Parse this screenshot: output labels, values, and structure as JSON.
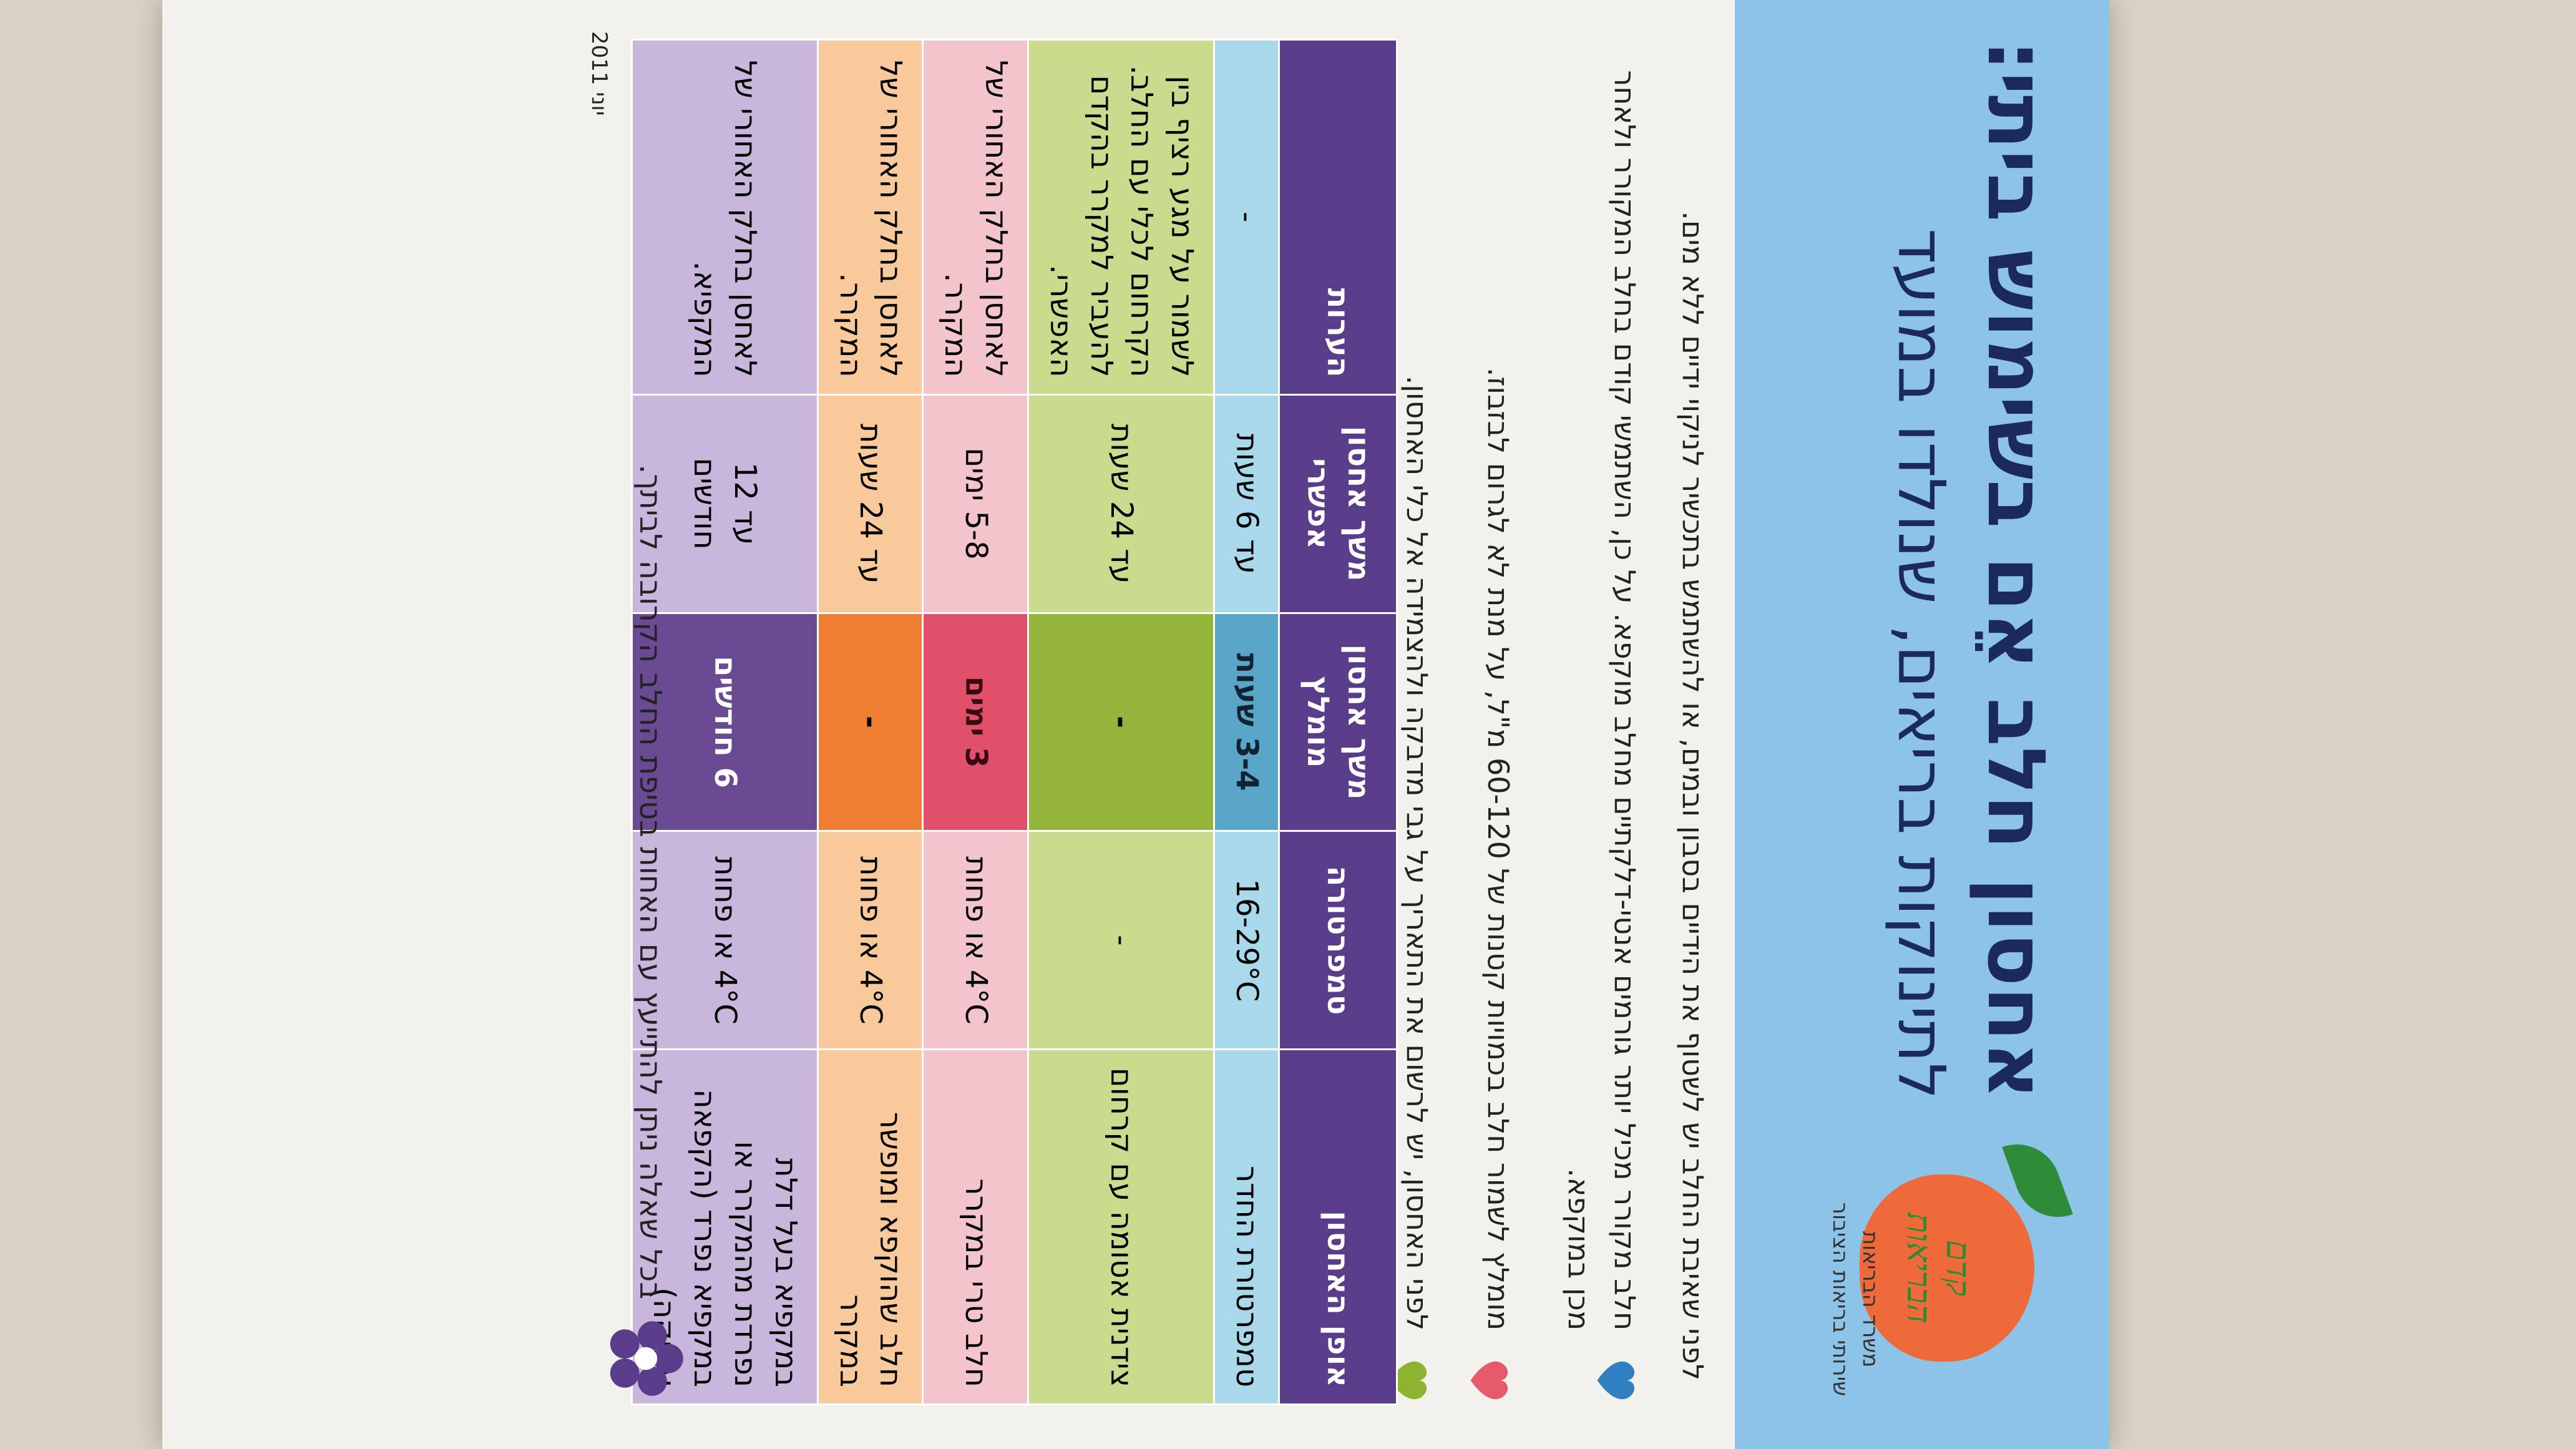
{
  "title": "אחסון חלב אֵם בשימוש ביתי:",
  "subtitle": "לתינוקות בריאים, שנולדו במועד",
  "logo": {
    "text": "קדם הבריאות",
    "ministry_line1": "משרד הבריאות",
    "ministry_line2": "שירותי בריאות הציבור"
  },
  "intro": "לפני שאיבת החלב יש לשטוף את הידיים בסבון ובמים, או להשתמש בתכשיר לניקוי ידיים ללא מים.",
  "tips": [
    {
      "text": "חלב מקורר מכיל יותר גורמים אנטי-דלקתיים מחלב מוקפא. על כן, השתמשי קודם בחלב המקורר ולאחר מכן במוקפא.",
      "color": "#2f7fc1"
    },
    {
      "text": "מומלץ לשמור חלב בכמויות קטנות של 60-120 מ\"ל, על מנת לא לגרום לבזבוז.",
      "color": "#e65a6a"
    },
    {
      "text": "לפני האחסון, יש לרשום את התאריך על גבי מדבקה ולהצמידה אל כלי האחסון.",
      "color": "#8cb431"
    }
  ],
  "table": {
    "headers": [
      "אופן האחסון",
      "טמפרטורה",
      "משך אחסון מומלץ",
      "משך אחסון אפשרי",
      "הערות"
    ],
    "rows": [
      [
        "טמפרטורת החדר",
        "16-29°C",
        "3-4 שעות",
        "עד 6 שעות",
        "-"
      ],
      [
        "צידנית אטומה עם קרחום",
        "-",
        "-",
        "עד 24 שעות",
        "לשמור על מגע רציף בין הקרחום לכלי עם החלב. להעביר למקרר בהקדם האפשרי."
      ],
      [
        "חלב טרי במקרר",
        "4°C או פחות",
        "3 ימים",
        "5-8 ימים",
        "לאחסן בחלק האחורי של המקרר."
      ],
      [
        "חלב שהוקפא ומופשר במקרר",
        "4°C או פחות",
        "-",
        "עד 24 שעות",
        "לאחסן בחלק האחורי של המקרר."
      ],
      [
        "במקפיא בעל דלת נפרדת מהמקרר או במקפיא נפרד (הקפאה עמוקה)",
        "4°C או פחות",
        "6 חודשים",
        "עד 12 חודשים",
        "לאחסן בחלק האחורי של המקפיא."
      ]
    ]
  },
  "footer": "בכל שאלה ניתן להתייעץ עם האחות בטיפת החלב הקרובה לביתך.",
  "date": "יוני 2011",
  "colors": {
    "header_bg": "#8ec3e8",
    "table_header": "#5a3d8a",
    "flower": "#5a3d8a"
  }
}
